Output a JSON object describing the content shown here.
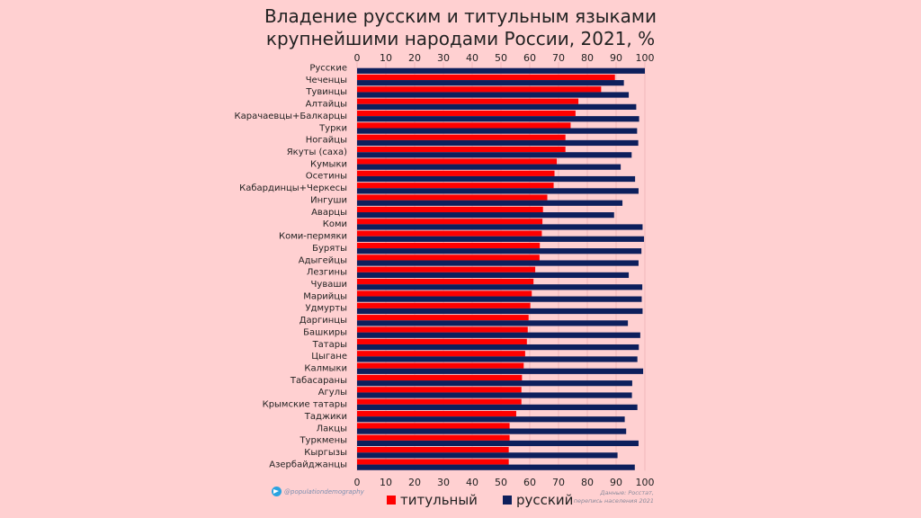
{
  "title_line1": "Владение русским и титульным языками",
  "title_line2": "крупнейшими народами России, 2021, %",
  "credit": "@populationdemography",
  "source_line1": "Данные: Росстат,",
  "source_line2": "перепись населения 2021",
  "chart_data": {
    "type": "bar",
    "orientation": "horizontal",
    "title": "Владение русским и титульным языками крупнейшими народами России, 2021, %",
    "xlim": [
      0,
      100
    ],
    "xticks": [
      0,
      10,
      20,
      30,
      40,
      50,
      60,
      70,
      80,
      90,
      100
    ],
    "grid": true,
    "legend_placement": "bottom",
    "categories": [
      "Русские",
      "Чеченцы",
      "Тувинцы",
      "Алтайцы",
      "Карачаевцы+Балкарцы",
      "Турки",
      "Ногайцы",
      "Якуты (саха)",
      "Кумыки",
      "Осетины",
      "Кабардинцы+Черкесы",
      "Ингуши",
      "Аварцы",
      "Коми",
      "Коми-пермяки",
      "Буряты",
      "Адыгейцы",
      "Лезгины",
      "Чуваши",
      "Марийцы",
      "Удмурты",
      "Даргинцы",
      "Башкиры",
      "Татары",
      "Цыгане",
      "Калмыки",
      "Табасараны",
      "Агулы",
      "Крымские татары",
      "Таджики",
      "Лакцы",
      "Туркмены",
      "Кыргызы",
      "Азербайджанцы"
    ],
    "series": [
      {
        "name": "титульный",
        "color": "#ff0000",
        "values": [
          null,
          89.6,
          84.8,
          76.9,
          75.9,
          74.2,
          72.4,
          72.4,
          69.4,
          68.6,
          68.3,
          66.1,
          64.6,
          64.4,
          64.2,
          63.5,
          63.4,
          61.9,
          61.3,
          60.7,
          60.2,
          59.6,
          59.3,
          59.0,
          58.4,
          57.9,
          57.3,
          57.1,
          57.1,
          55.3,
          53.0,
          53.0,
          52.7,
          52.7
        ]
      },
      {
        "name": "русский",
        "color": "#0d1f5c",
        "values": [
          100,
          92.7,
          94.4,
          97.0,
          98.0,
          97.3,
          97.7,
          95.4,
          91.6,
          96.6,
          97.8,
          92.2,
          89.3,
          99.2,
          99.7,
          98.8,
          97.8,
          94.4,
          99.1,
          98.9,
          99.2,
          94.1,
          98.4,
          97.9,
          97.4,
          99.4,
          95.6,
          95.5,
          97.4,
          93.0,
          93.5,
          97.8,
          90.5,
          96.5
        ]
      }
    ]
  }
}
